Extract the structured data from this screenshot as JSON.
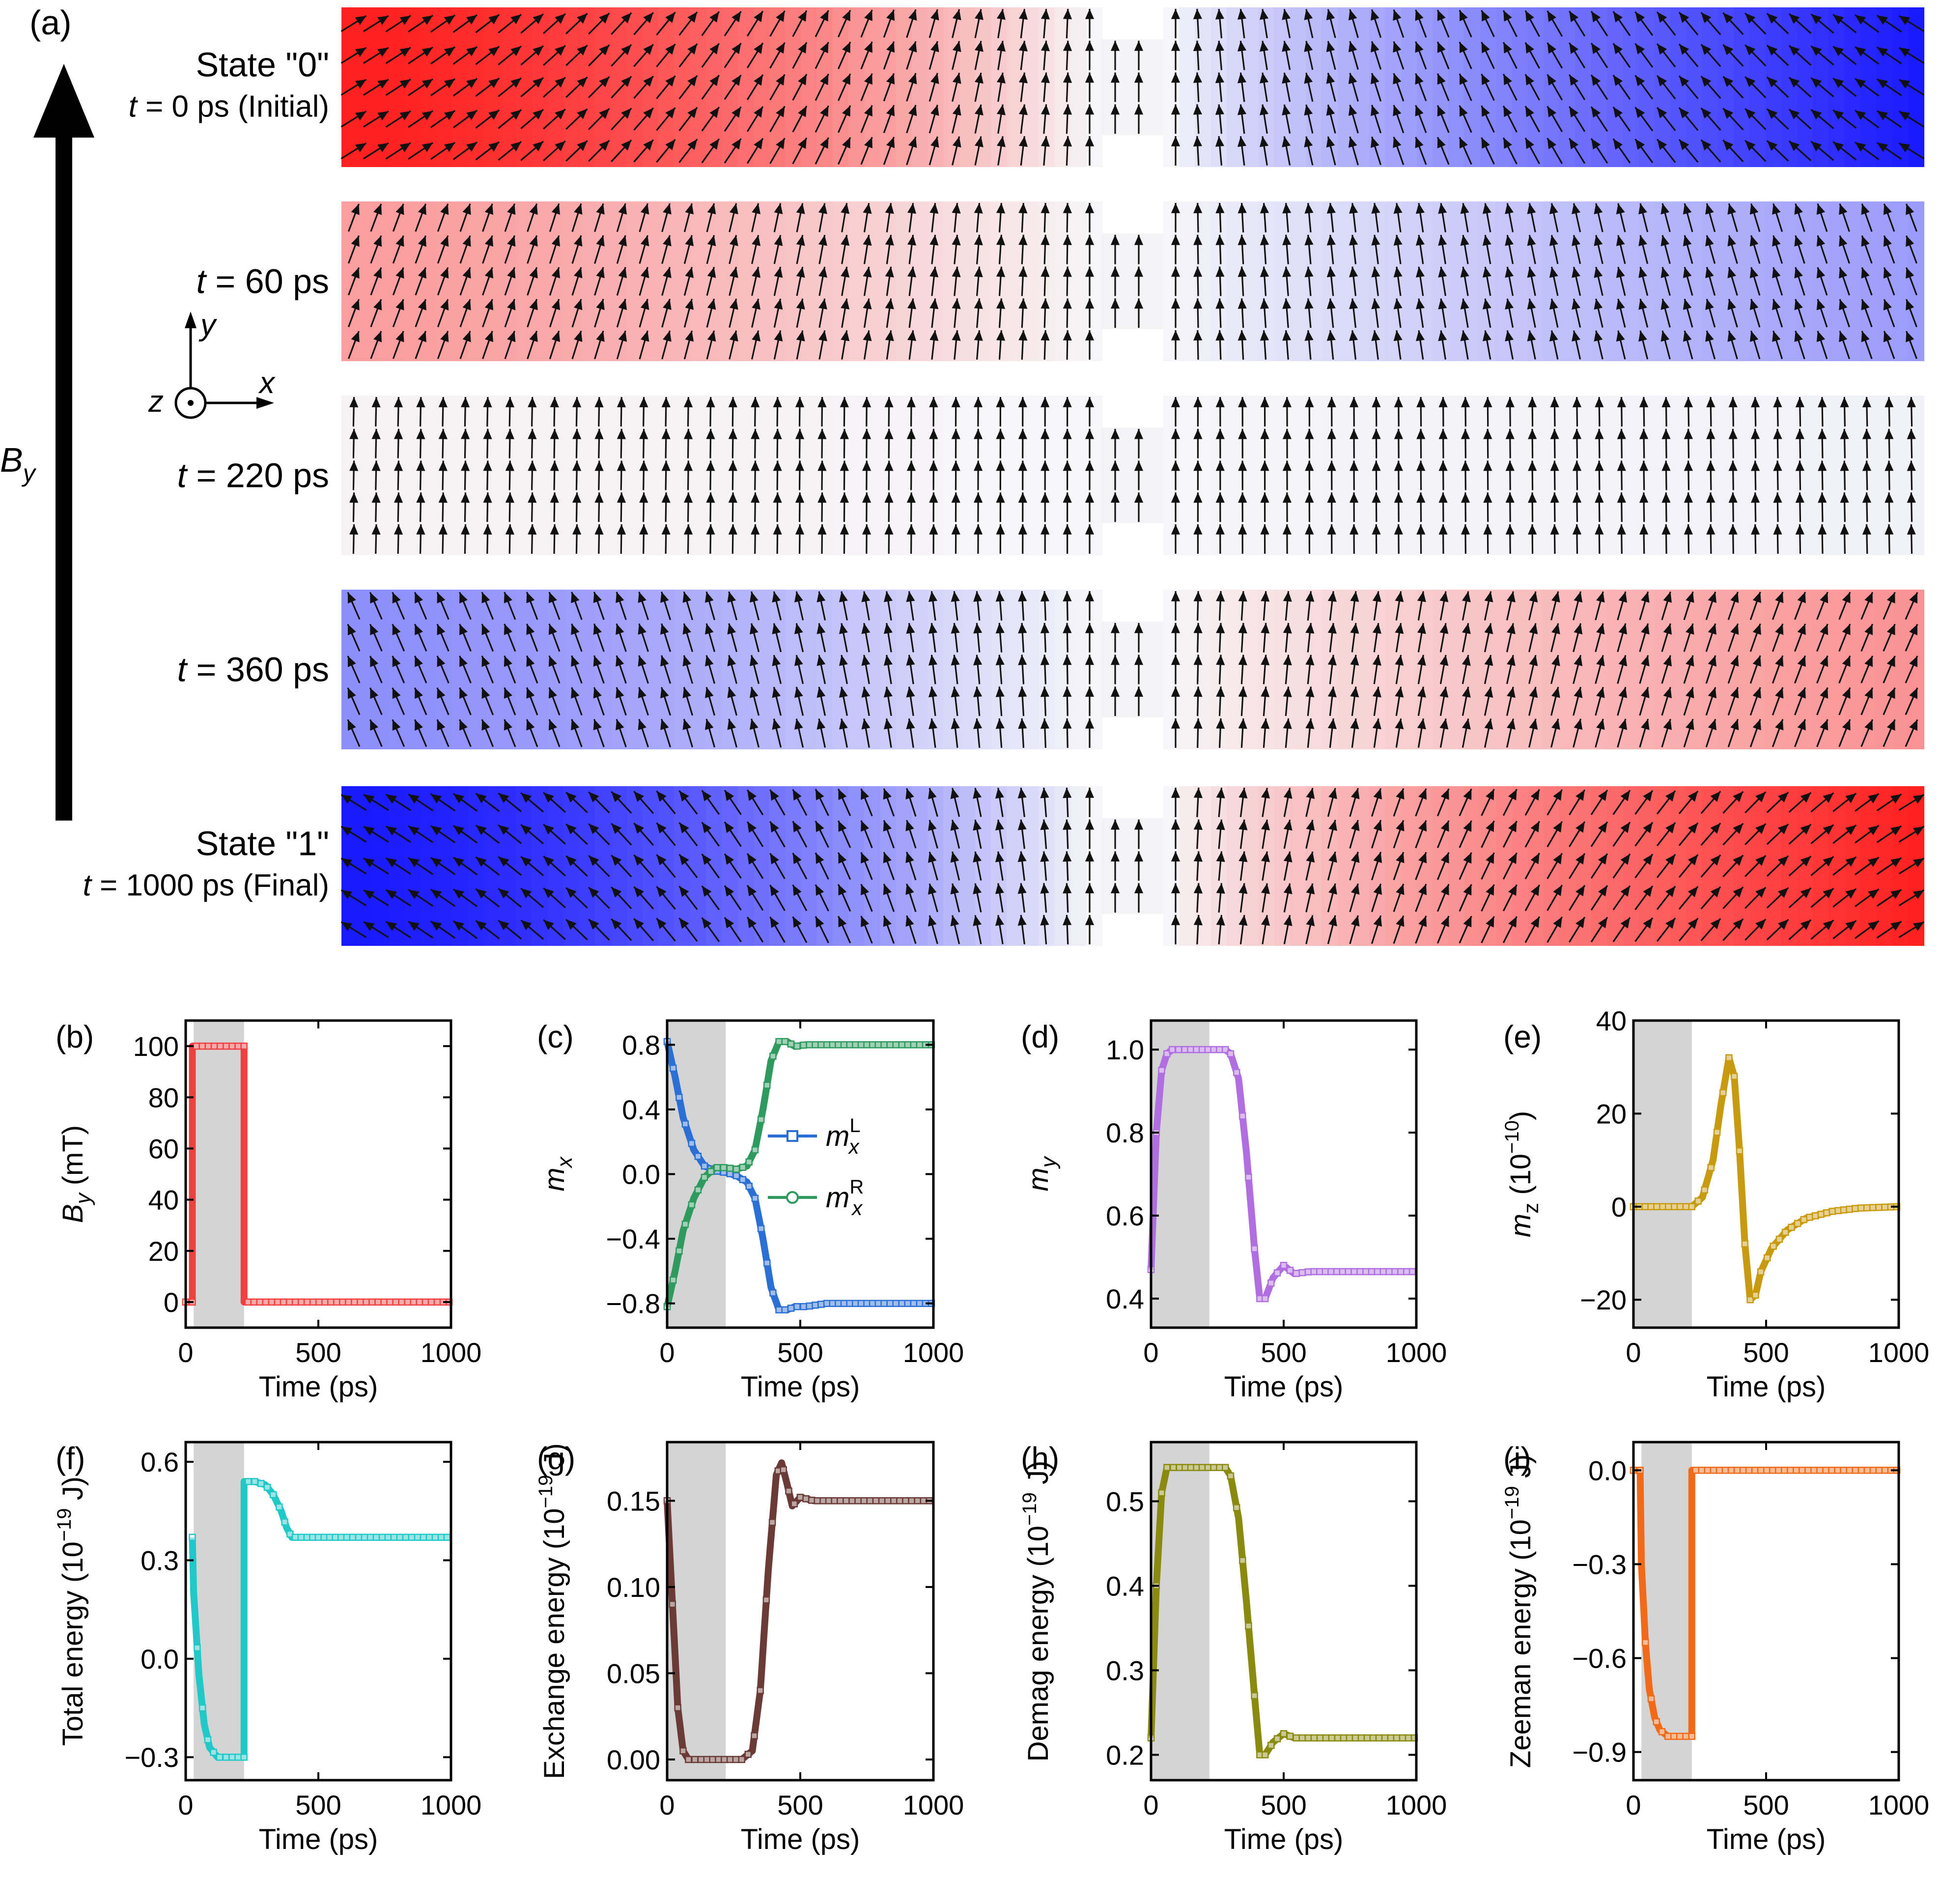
{
  "panel_a": {
    "letter": "(a)",
    "field_label": "B",
    "field_sub": "y",
    "axes": {
      "x": "x",
      "y": "y",
      "z": "z"
    },
    "states": [
      {
        "title": "State \"0\"",
        "t_prefix": "t",
        "t_text": " = 0 ps (Initial)",
        "left_mx": 0.85,
        "right_mx": -0.85,
        "left_my": 0.45,
        "right_my": 0.45
      },
      {
        "title": "",
        "t_prefix": "t",
        "t_text": " = 60 ps",
        "left_mx": 0.35,
        "right_mx": -0.35,
        "left_my": 0.93,
        "right_my": 0.93
      },
      {
        "title": "",
        "t_prefix": "t",
        "t_text": " = 220 ps",
        "left_mx": 0.02,
        "right_mx": -0.02,
        "left_my": 1.0,
        "right_my": 1.0
      },
      {
        "title": "",
        "t_prefix": "t",
        "t_text": " = 360 ps",
        "left_mx": -0.4,
        "right_mx": 0.4,
        "left_my": 0.9,
        "right_my": 0.9
      },
      {
        "title": "State \"1\"",
        "t_prefix": "t",
        "t_text": " = 1000 ps (Final)",
        "left_mx": -0.85,
        "right_mx": 0.85,
        "left_my": 0.45,
        "right_my": 0.45
      }
    ],
    "colors": {
      "positive": "#ff2020",
      "negative": "#1a1aff",
      "neutral": "#f6f6f8"
    }
  },
  "chart_data": [
    {
      "id": "b",
      "letter": "(b)",
      "type": "line",
      "ylabel": "B",
      "ylabel_sub": "y",
      "ylabel_unit": " (mT)",
      "xlabel": "Time (ps)",
      "xlim": [
        0,
        1000
      ],
      "ylim": [
        -10,
        110
      ],
      "xticks": [
        0,
        500,
        1000
      ],
      "yticks": [
        0,
        20,
        40,
        60,
        80,
        100
      ],
      "yticklabels": [
        "0",
        "20",
        "40",
        "60",
        "80",
        "100"
      ],
      "shade": [
        30,
        220
      ],
      "color": "#f04040",
      "series": [
        {
          "name": "B_y",
          "x": [
            0,
            25,
            25,
            220,
            220,
            1000
          ],
          "y": [
            0,
            0,
            100,
            100,
            0,
            0
          ]
        }
      ]
    },
    {
      "id": "c",
      "letter": "(c)",
      "type": "line",
      "ylabel": "m",
      "ylabel_sub": "x",
      "ylabel_unit": "",
      "xlabel": "Time (ps)",
      "xlim": [
        0,
        1000
      ],
      "ylim": [
        -0.95,
        0.95
      ],
      "xticks": [
        0,
        500,
        1000
      ],
      "yticks": [
        -0.8,
        -0.4,
        0.0,
        0.4,
        0.8
      ],
      "yticklabels": [
        "−0.8",
        "−0.4",
        "0.0",
        "0.4",
        "0.8"
      ],
      "shade": [
        0,
        220
      ],
      "legend": [
        {
          "base": "m",
          "sup": "L",
          "sub": "x",
          "color": "#2a6fd6",
          "marker": "square"
        },
        {
          "base": "m",
          "sup": "R",
          "sub": "x",
          "color": "#2e9a5e",
          "marker": "circle"
        }
      ],
      "series": [
        {
          "name": "m_x^L",
          "color": "#2a6fd6",
          "x": [
            0,
            30,
            60,
            100,
            140,
            180,
            220,
            260,
            300,
            330,
            360,
            390,
            420,
            450,
            480,
            520,
            600,
            700,
            800,
            1000
          ],
          "y": [
            0.82,
            0.6,
            0.35,
            0.15,
            0.05,
            0.02,
            0.01,
            -0.01,
            -0.05,
            -0.15,
            -0.4,
            -0.7,
            -0.84,
            -0.84,
            -0.82,
            -0.82,
            -0.8,
            -0.8,
            -0.8,
            -0.8
          ]
        },
        {
          "name": "m_x^R",
          "color": "#2e9a5e",
          "x": [
            0,
            30,
            60,
            100,
            140,
            180,
            220,
            260,
            300,
            330,
            360,
            390,
            420,
            450,
            480,
            520,
            600,
            700,
            800,
            1000
          ],
          "y": [
            -0.82,
            -0.6,
            -0.35,
            -0.15,
            -0.02,
            0.04,
            0.04,
            0.03,
            0.05,
            0.15,
            0.4,
            0.7,
            0.82,
            0.82,
            0.79,
            0.8,
            0.8,
            0.8,
            0.8,
            0.8
          ]
        }
      ]
    },
    {
      "id": "d",
      "letter": "(d)",
      "type": "line",
      "ylabel": "m",
      "ylabel_sub": "y",
      "ylabel_unit": "",
      "xlabel": "Time (ps)",
      "xlim": [
        0,
        1000
      ],
      "ylim": [
        0.33,
        1.07
      ],
      "xticks": [
        0,
        500,
        1000
      ],
      "yticks": [
        0.4,
        0.6,
        0.8,
        1.0
      ],
      "yticklabels": [
        "0.4",
        "0.6",
        "0.8",
        "1.0"
      ],
      "shade": [
        0,
        220
      ],
      "color": "#b06ee0",
      "series": [
        {
          "name": "m_y",
          "x": [
            0,
            20,
            40,
            60,
            80,
            120,
            200,
            280,
            300,
            330,
            360,
            390,
            410,
            430,
            460,
            500,
            540,
            600,
            700,
            1000
          ],
          "y": [
            0.47,
            0.8,
            0.95,
            0.99,
            1.0,
            1.0,
            1.0,
            1.0,
            0.99,
            0.93,
            0.75,
            0.52,
            0.4,
            0.4,
            0.45,
            0.48,
            0.46,
            0.465,
            0.465,
            0.465
          ]
        }
      ]
    },
    {
      "id": "e",
      "letter": "(e)",
      "type": "line",
      "ylabel": "m",
      "ylabel_sub": "z",
      "ylabel_unit": " (10",
      "ylabel_sup": "−10",
      "ylabel_tail": ")",
      "xlabel": "Time (ps)",
      "xlim": [
        0,
        1000
      ],
      "ylim": [
        -26,
        40
      ],
      "xticks": [
        0,
        500,
        1000
      ],
      "yticks": [
        -20,
        0,
        20,
        40
      ],
      "yticklabels": [
        "−20",
        "0",
        "20",
        "40"
      ],
      "shade": [
        0,
        220
      ],
      "color": "#c89a10",
      "series": [
        {
          "name": "m_z",
          "x": [
            0,
            220,
            260,
            300,
            330,
            360,
            380,
            400,
            420,
            440,
            460,
            480,
            520,
            580,
            650,
            750,
            850,
            1000
          ],
          "y": [
            0,
            0,
            2,
            10,
            22,
            32,
            28,
            12,
            -8,
            -20,
            -19,
            -14,
            -9,
            -5,
            -2.5,
            -1,
            -0.3,
            0
          ]
        }
      ]
    },
    {
      "id": "f",
      "letter": "(f)",
      "type": "line",
      "ylabel": "Total energy (10",
      "ylabel_sup": "−19",
      "ylabel_tail": " J)",
      "xlabel": "Time (ps)",
      "xlim": [
        0,
        1000
      ],
      "ylim": [
        -0.37,
        0.66
      ],
      "xticks": [
        0,
        500,
        1000
      ],
      "yticks": [
        -0.3,
        0.0,
        0.3,
        0.6
      ],
      "yticklabels": [
        "−0.3",
        "0.0",
        "0.3",
        "0.6"
      ],
      "shade": [
        30,
        220
      ],
      "color": "#20c8c8",
      "series": [
        {
          "name": "total",
          "x": [
            25,
            30,
            50,
            70,
            90,
            120,
            160,
            220,
            220,
            260,
            300,
            330,
            360,
            380,
            400,
            420,
            450,
            500,
            600,
            800,
            1000
          ],
          "y": [
            0.37,
            0.2,
            -0.05,
            -0.2,
            -0.27,
            -0.3,
            -0.3,
            -0.3,
            0.54,
            0.54,
            0.53,
            0.5,
            0.45,
            0.4,
            0.37,
            0.37,
            0.37,
            0.37,
            0.37,
            0.37,
            0.37
          ]
        }
      ]
    },
    {
      "id": "g",
      "letter": "(g)",
      "type": "line",
      "ylabel": "Exchange energy (10",
      "ylabel_sup": "−19",
      "ylabel_tail": " J)",
      "xlabel": "Time (ps)",
      "xlim": [
        0,
        1000
      ],
      "ylim": [
        -0.012,
        0.184
      ],
      "xticks": [
        0,
        500,
        1000
      ],
      "yticks": [
        0.0,
        0.05,
        0.1,
        0.15
      ],
      "yticklabels": [
        "0.00",
        "0.05",
        "0.10",
        "0.15"
      ],
      "shade": [
        0,
        220
      ],
      "color": "#6a3a36",
      "series": [
        {
          "name": "exchange",
          "x": [
            0,
            20,
            40,
            60,
            80,
            120,
            200,
            280,
            320,
            350,
            380,
            410,
            430,
            450,
            470,
            500,
            550,
            650,
            1000
          ],
          "y": [
            0.15,
            0.09,
            0.03,
            0.005,
            0.0,
            0.0,
            0.0,
            0.0,
            0.005,
            0.04,
            0.11,
            0.165,
            0.172,
            0.16,
            0.147,
            0.152,
            0.15,
            0.15,
            0.15
          ]
        }
      ]
    },
    {
      "id": "h",
      "letter": "(h)",
      "type": "line",
      "ylabel": "Demag energy (10",
      "ylabel_sup": "−19",
      "ylabel_tail": " J)",
      "xlabel": "Time (ps)",
      "xlim": [
        0,
        1000
      ],
      "ylim": [
        0.17,
        0.57
      ],
      "xticks": [
        0,
        500,
        1000
      ],
      "yticks": [
        0.2,
        0.3,
        0.4,
        0.5
      ],
      "yticklabels": [
        "0.2",
        "0.3",
        "0.4",
        "0.5"
      ],
      "shade": [
        0,
        220
      ],
      "color": "#8a8a10",
      "series": [
        {
          "name": "demag",
          "x": [
            0,
            20,
            40,
            60,
            100,
            200,
            280,
            300,
            330,
            360,
            390,
            410,
            430,
            460,
            500,
            540,
            600,
            1000
          ],
          "y": [
            0.22,
            0.4,
            0.51,
            0.54,
            0.54,
            0.54,
            0.54,
            0.53,
            0.48,
            0.38,
            0.27,
            0.2,
            0.2,
            0.215,
            0.225,
            0.22,
            0.22,
            0.22
          ]
        }
      ]
    },
    {
      "id": "i",
      "letter": "(i)",
      "type": "line",
      "ylabel": "Zeeman energy (10",
      "ylabel_sup": "−19",
      "ylabel_tail": " J)",
      "xlabel": "Time (ps)",
      "xlim": [
        0,
        1000
      ],
      "ylim": [
        -0.99,
        0.09
      ],
      "xticks": [
        0,
        500,
        1000
      ],
      "yticks": [
        -0.9,
        -0.6,
        -0.3,
        0.0
      ],
      "yticklabels": [
        "−0.9",
        "−0.6",
        "−0.3",
        "0.0"
      ],
      "shade": [
        30,
        220
      ],
      "color": "#f06a1a",
      "series": [
        {
          "name": "zeeman",
          "x": [
            0,
            25,
            30,
            45,
            60,
            80,
            100,
            130,
            160,
            220,
            220,
            1000
          ],
          "y": [
            0,
            0,
            -0.3,
            -0.55,
            -0.7,
            -0.79,
            -0.83,
            -0.85,
            -0.85,
            -0.85,
            0,
            0
          ]
        }
      ]
    }
  ]
}
